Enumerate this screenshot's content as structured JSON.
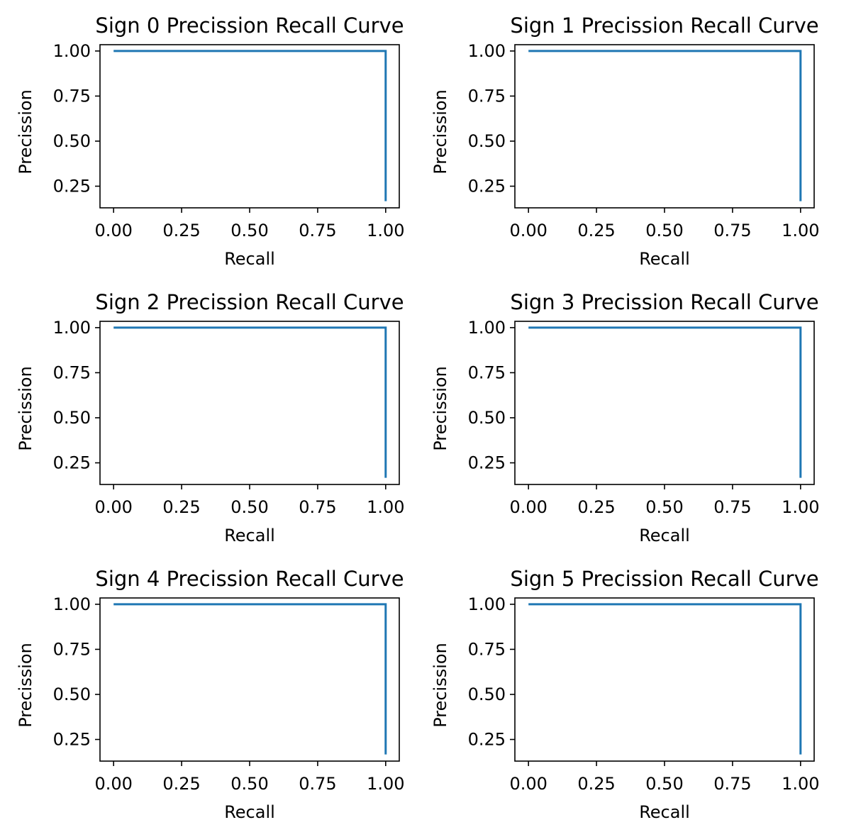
{
  "colors": {
    "line": "#1f77b4",
    "axes": "#000000",
    "background": "#ffffff"
  },
  "chart_data": [
    {
      "type": "line",
      "title": "Sign 0 Precission Recall Curve",
      "xlabel": "Recall",
      "ylabel": "Precission",
      "xlim": [
        -0.05,
        1.05
      ],
      "ylim": [
        0.13,
        1.035
      ],
      "xticks": [
        "0.00",
        "0.25",
        "0.50",
        "0.75",
        "1.00"
      ],
      "yticks": [
        "0.25",
        "0.50",
        "0.75",
        "1.00"
      ],
      "grid": false,
      "series": [
        {
          "x": [
            0.0,
            1.0,
            1.0
          ],
          "y": [
            1.0,
            1.0,
            0.167
          ]
        }
      ]
    },
    {
      "type": "line",
      "title": "Sign 1 Precission Recall Curve",
      "xlabel": "Recall",
      "ylabel": "Precission",
      "xlim": [
        -0.05,
        1.05
      ],
      "ylim": [
        0.13,
        1.035
      ],
      "xticks": [
        "0.00",
        "0.25",
        "0.50",
        "0.75",
        "1.00"
      ],
      "yticks": [
        "0.25",
        "0.50",
        "0.75",
        "1.00"
      ],
      "grid": false,
      "series": [
        {
          "x": [
            0.0,
            1.0,
            1.0
          ],
          "y": [
            1.0,
            1.0,
            0.167
          ]
        }
      ]
    },
    {
      "type": "line",
      "title": "Sign 2 Precission Recall Curve",
      "xlabel": "Recall",
      "ylabel": "Precission",
      "xlim": [
        -0.05,
        1.05
      ],
      "ylim": [
        0.13,
        1.035
      ],
      "xticks": [
        "0.00",
        "0.25",
        "0.50",
        "0.75",
        "1.00"
      ],
      "yticks": [
        "0.25",
        "0.50",
        "0.75",
        "1.00"
      ],
      "grid": false,
      "series": [
        {
          "x": [
            0.0,
            1.0,
            1.0
          ],
          "y": [
            1.0,
            1.0,
            0.167
          ]
        }
      ]
    },
    {
      "type": "line",
      "title": "Sign 3 Precission Recall Curve",
      "xlabel": "Recall",
      "ylabel": "Precission",
      "xlim": [
        -0.05,
        1.05
      ],
      "ylim": [
        0.13,
        1.035
      ],
      "xticks": [
        "0.00",
        "0.25",
        "0.50",
        "0.75",
        "1.00"
      ],
      "yticks": [
        "0.25",
        "0.50",
        "0.75",
        "1.00"
      ],
      "grid": false,
      "series": [
        {
          "x": [
            0.0,
            1.0,
            1.0
          ],
          "y": [
            1.0,
            1.0,
            0.167
          ]
        }
      ]
    },
    {
      "type": "line",
      "title": "Sign 4 Precission Recall Curve",
      "xlabel": "Recall",
      "ylabel": "Precission",
      "xlim": [
        -0.05,
        1.05
      ],
      "ylim": [
        0.13,
        1.035
      ],
      "xticks": [
        "0.00",
        "0.25",
        "0.50",
        "0.75",
        "1.00"
      ],
      "yticks": [
        "0.25",
        "0.50",
        "0.75",
        "1.00"
      ],
      "grid": false,
      "series": [
        {
          "x": [
            0.0,
            1.0,
            1.0
          ],
          "y": [
            1.0,
            1.0,
            0.167
          ]
        }
      ]
    },
    {
      "type": "line",
      "title": "Sign 5 Precission Recall Curve",
      "xlabel": "Recall",
      "ylabel": "Precission",
      "xlim": [
        -0.05,
        1.05
      ],
      "ylim": [
        0.13,
        1.035
      ],
      "xticks": [
        "0.00",
        "0.25",
        "0.50",
        "0.75",
        "1.00"
      ],
      "yticks": [
        "0.25",
        "0.50",
        "0.75",
        "1.00"
      ],
      "grid": false,
      "series": [
        {
          "x": [
            0.0,
            1.0,
            1.0
          ],
          "y": [
            1.0,
            1.0,
            0.167
          ]
        }
      ]
    }
  ]
}
